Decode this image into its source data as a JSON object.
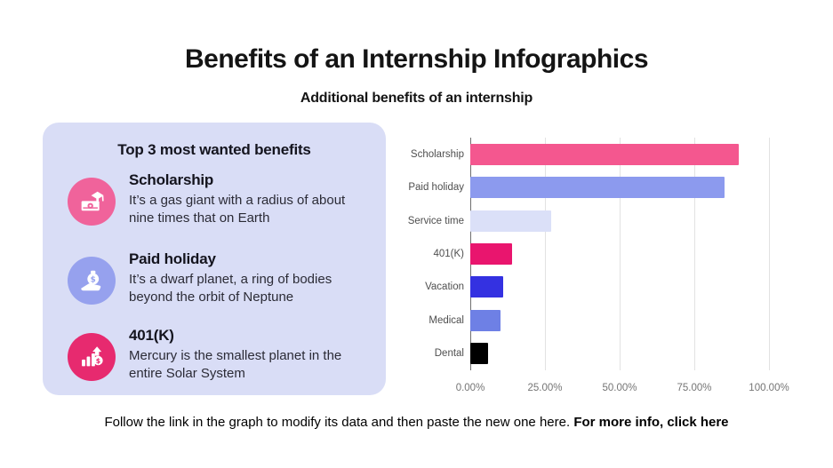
{
  "page": {
    "title": "Benefits of an Internship Infographics",
    "subtitle": "Additional benefits of an internship"
  },
  "benefits_card": {
    "header": "Top 3 most wanted benefits",
    "items": [
      {
        "title": "Scholarship",
        "description": "It’s a gas giant with a radius of about nine times that on Earth",
        "icon": "graduation-cap-banknote-icon",
        "icon_color": "#F0639B"
      },
      {
        "title": "Paid holiday",
        "description": "It’s a dwarf planet, a ring of bodies beyond the orbit of Neptune",
        "icon": "hand-money-bag-icon",
        "icon_color": "#96A1EE"
      },
      {
        "title": "401(K)",
        "description": "Mercury is the smallest planet in the entire Solar System",
        "icon": "growth-chart-coin-icon",
        "icon_color": "#E72A6F"
      }
    ]
  },
  "chart_data": {
    "type": "bar",
    "orientation": "horizontal",
    "title": "",
    "xlabel": "",
    "ylabel": "",
    "categories": [
      "Scholarship",
      "Paid holiday",
      "Service time",
      "401(K)",
      "Vacation",
      "Medical",
      "Dental"
    ],
    "values": [
      90,
      85,
      27,
      14,
      11,
      10,
      6
    ],
    "value_unit": "%",
    "bar_colors": [
      "#F4578F",
      "#8C9AEE",
      "#DBE0F8",
      "#E9156E",
      "#3431E1",
      "#6E80E5",
      "#000000"
    ],
    "x_ticks": [
      "0.00%",
      "25.00%",
      "50.00%",
      "75.00%",
      "100.00%"
    ],
    "x_tick_values": [
      0,
      25,
      50,
      75,
      100
    ],
    "xlim": [
      0,
      100
    ],
    "grid": true,
    "legend": false
  },
  "footer": {
    "text": "Follow the link in the graph to modify its data and then paste the new one here.",
    "bold_text": "For more info, click here"
  }
}
